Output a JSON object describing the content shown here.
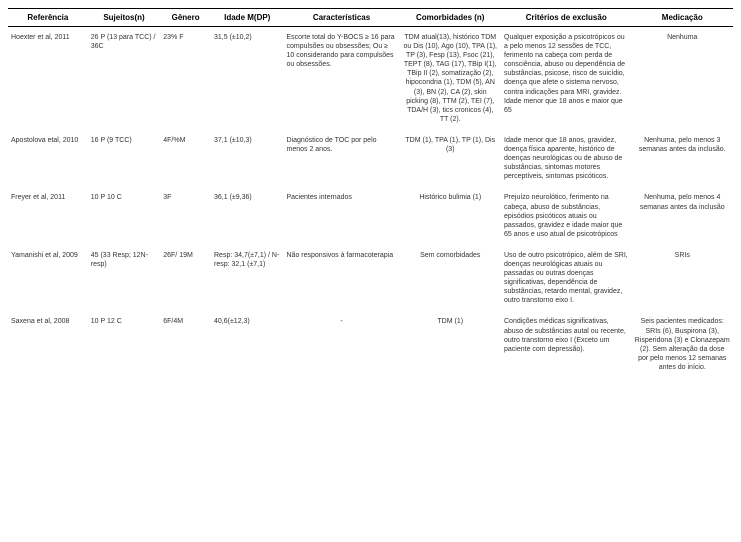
{
  "headers": {
    "ref": "Referência",
    "subj": "Sujeitos(n)",
    "gen": "Gênero",
    "age": "Idade M(DP)",
    "char": "Características",
    "com": "Comorbidades (n)",
    "excl": "Critérios de exclusão",
    "med": "Medicação"
  },
  "rows": [
    {
      "ref": "Hoexter et al, 2011",
      "subj": "26 P (13 para TCC) / 36C",
      "gen": "23% F",
      "age": "31,5 (±10,2)",
      "char": "Escorte total do Y-BOCS ≥ 16 para compulsões ou obsessões; Ou ≥ 10 considerando para compulsões ou obsessões.",
      "com": "TDM atual(13), histórico TDM ou Dis (10), Ago (10), TPA (1), TP (3), Fesp (13), Fsoc (21), TEPT (8), TAG (17), TBip I(1), TBip II (2), somatização (2), hipocondria (1), TDM (5), AN (3), BN (2), CA (2), skin picking (8), TTM (2), TEI (7), TDA/H (3), tics cronicos (4), TT (2).",
      "excl": "Qualquer exposição a psicotrópicos ou a pelo menos 12 sessões de TCC, ferimento na cabeça com perda de consciência, abuso ou dependência de substâncias, psicose, risco de suicídio, doença que afete o sistema nervoso, contra indicações para MRI, gravidez. Idade menor que 18 anos e maior que 65",
      "med": "Nenhuma"
    },
    {
      "ref": "Apostolova etal, 2010",
      "subj": "16 P (9 TCC)",
      "gen": "4F/%M",
      "age": "37,1 (±10,3)",
      "char": "Diagnóstico de TOC por pelo menos 2 anos.",
      "com": "TDM (1), TPA (1), TP (1), Dis (3)",
      "excl": "Idade menor que 18 anos, gravidez, doença física aparente, histórico de doenças neurológicas ou de abuso de substâncias, sintomas motores perceptíveis, sintomas psicóticos.",
      "med": "Nenhuma, pelo menos 3 semanas antes da inclusão."
    },
    {
      "ref": "Freyer et al, 2011",
      "subj": "10 P 10 C",
      "gen": "3F",
      "age": "36,1 (±9,36)",
      "char": "Pacientes internados",
      "com": "Histórico bulimia (1)",
      "excl": "Prejuízo neurolótico, ferimento na cabeça, abuso de substâncias, episódios psicóticos atuais ou passados, gravidez e idade maior que 65 anos e uso atual de psicotrópicos",
      "med": "Nenhuma, pelo menos 4 semanas antes da inclusão"
    },
    {
      "ref": "Yamanishi et al, 2009",
      "subj": "45 (33 Resp; 12N- resp)",
      "gen": "26F/ 19M",
      "age": "Resp: 34,7(±7,1) / N-resp: 32,1 (±7,1)",
      "char": "Não responsivos à farmacoterapia",
      "com": "Sem comorbidades",
      "excl": "Uso de outro psicotrópico, além de SRI, doenças neurológicas atuais ou passadas ou outras doenças significativas, dependência de substâncias, retardo mental, gravidez, outro transtorno eixo I.",
      "med": "SRIs"
    },
    {
      "ref": "Saxena et al, 2008",
      "subj": "10 P 12 C",
      "gen": "6F/4M",
      "age": "40,6(±12,3)",
      "char": "-",
      "com": "TDM (1)",
      "excl": "Condições médicas significativas, abuso de substâncias autal ou recente, outro transtorno eixo I (Exceto um paciente com depressão).",
      "med": "Seis pacientes medicados: SRIs (6), Buspirona (3), Risperidona (3) e Clonazepam (2). Sem alteração da dose por pelo menos 12 semanas antes do início."
    }
  ]
}
